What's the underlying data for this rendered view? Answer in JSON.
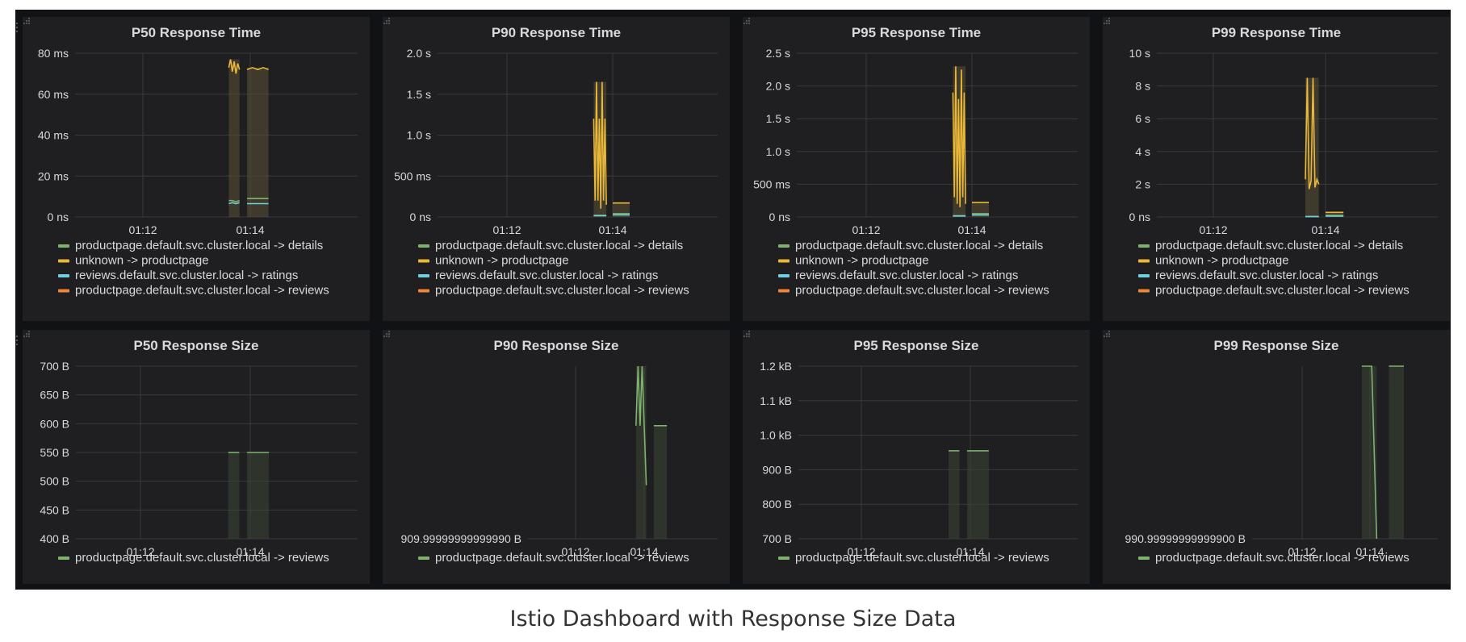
{
  "colors": {
    "details": "#7eb26d",
    "productpage": "#eab839",
    "ratings": "#6ed0e0",
    "reviews": "#ef843c",
    "panel_bg": "#1f1f21",
    "dashboard_bg": "#111215",
    "grid": "#3a3a3c",
    "text": "#d8d9da"
  },
  "caption": "Istio Dashboard with Response Size Data",
  "panels": [
    {
      "title": "P50 Response Time",
      "chart_data": {
        "type": "line",
        "x_ticks": [
          "01:12",
          "01:14"
        ],
        "y_ticks": [
          "80 ms",
          "60 ms",
          "40 ms",
          "20 ms",
          "0 ns"
        ],
        "ylim": [
          0,
          80
        ],
        "series": [
          {
            "name": "productpage.default.svc.cluster.local -> details",
            "color": "#7eb26d",
            "bursts": [
              [
                0.8,
                0.9,
                [
                  8,
                  8,
                  7.5,
                  8
                ]
              ],
              [
                0.97,
                1.17,
                [
                  9,
                  9,
                  9
                ]
              ]
            ]
          },
          {
            "name": "unknown -> productpage",
            "color": "#eab839",
            "bursts": [
              [
                0.8,
                0.9,
                [
                  73,
                  77,
                  71,
                  76,
                  70,
                  75,
                  72
                ]
              ],
              [
                0.97,
                1.17,
                [
                  72,
                  73,
                  72,
                  73,
                  72
                ]
              ]
            ]
          },
          {
            "name": "reviews.default.svc.cluster.local -> ratings",
            "color": "#6ed0e0",
            "bursts": [
              [
                0.8,
                0.9,
                [
                  6.5,
                  7,
                  6.5,
                  7
                ]
              ],
              [
                0.97,
                1.17,
                [
                  6.5,
                  6.5,
                  6.5
                ]
              ]
            ]
          },
          {
            "name": "productpage.default.svc.cluster.local -> reviews",
            "color": "#ef843c",
            "bursts": []
          }
        ]
      }
    },
    {
      "title": "P90 Response Time",
      "chart_data": {
        "type": "line",
        "x_ticks": [
          "01:12",
          "01:14"
        ],
        "y_ticks": [
          "2.0 s",
          "1.5 s",
          "1.0 s",
          "500 ms",
          "0 ns"
        ],
        "ylim": [
          0,
          2.0
        ],
        "series": [
          {
            "name": "productpage.default.svc.cluster.local -> details",
            "color": "#7eb26d",
            "bursts": [
              [
                0.82,
                0.94,
                [
                  0.02,
                  0.02,
                  0.02
                ]
              ],
              [
                1.0,
                1.16,
                [
                  0.04,
                  0.04
                ]
              ]
            ]
          },
          {
            "name": "unknown -> productpage",
            "color": "#eab839",
            "bursts": [
              [
                0.82,
                0.94,
                [
                  1.2,
                  0.2,
                  1.65,
                  0.2,
                  1.2,
                  0.1,
                  1.65,
                  0.2,
                  1.2,
                  0.15
                ]
              ],
              [
                1.0,
                1.16,
                [
                  0.17,
                  0.17
                ]
              ]
            ]
          },
          {
            "name": "reviews.default.svc.cluster.local -> ratings",
            "color": "#6ed0e0",
            "bursts": [
              [
                0.82,
                0.94,
                [
                  0.015,
                  0.015
                ]
              ],
              [
                1.0,
                1.16,
                [
                  0.025,
                  0.025
                ]
              ]
            ]
          },
          {
            "name": "productpage.default.svc.cluster.local -> reviews",
            "color": "#ef843c",
            "bursts": []
          }
        ]
      }
    },
    {
      "title": "P95 Response Time",
      "chart_data": {
        "type": "line",
        "x_ticks": [
          "01:12",
          "01:14"
        ],
        "y_ticks": [
          "2.5 s",
          "2.0 s",
          "1.5 s",
          "1.0 s",
          "500 ms",
          "0 ns"
        ],
        "ylim": [
          0,
          2.5
        ],
        "series": [
          {
            "name": "productpage.default.svc.cluster.local -> details",
            "color": "#7eb26d",
            "bursts": [
              [
                0.82,
                0.94,
                [
                  0.02,
                  0.02,
                  0.02
                ]
              ],
              [
                1.0,
                1.16,
                [
                  0.05,
                  0.05
                ]
              ]
            ]
          },
          {
            "name": "unknown -> productpage",
            "color": "#eab839",
            "bursts": [
              [
                0.82,
                0.94,
                [
                  1.9,
                  0.3,
                  2.3,
                  0.2,
                  1.8,
                  0.15,
                  2.25,
                  0.3,
                  1.9,
                  0.2
                ]
              ],
              [
                1.0,
                1.16,
                [
                  0.22,
                  0.22
                ]
              ]
            ]
          },
          {
            "name": "reviews.default.svc.cluster.local -> ratings",
            "color": "#6ed0e0",
            "bursts": [
              [
                0.82,
                0.94,
                [
                  0.015,
                  0.015
                ]
              ],
              [
                1.0,
                1.16,
                [
                  0.03,
                  0.03
                ]
              ]
            ]
          },
          {
            "name": "productpage.default.svc.cluster.local -> reviews",
            "color": "#ef843c",
            "bursts": []
          }
        ]
      }
    },
    {
      "title": "P99 Response Time",
      "chart_data": {
        "type": "line",
        "x_ticks": [
          "01:12",
          "01:14"
        ],
        "y_ticks": [
          "10 s",
          "8 s",
          "6 s",
          "4 s",
          "2 s",
          "0 ns"
        ],
        "ylim": [
          0,
          10
        ],
        "series": [
          {
            "name": "productpage.default.svc.cluster.local -> details",
            "color": "#7eb26d",
            "bursts": [
              [
                0.82,
                0.94,
                [
                  0.03,
                  0.03,
                  0.03
                ]
              ],
              [
                1.0,
                1.16,
                [
                  0.1,
                  0.1
                ]
              ]
            ]
          },
          {
            "name": "unknown -> productpage",
            "color": "#eab839",
            "bursts": [
              [
                0.82,
                0.94,
                [
                  2.3,
                  8.5,
                  1.7,
                  2.2,
                  8.5,
                  1.8,
                  2.3,
                  2.0
                ]
              ],
              [
                1.0,
                1.16,
                [
                  0.28,
                  0.28
                ]
              ]
            ]
          },
          {
            "name": "reviews.default.svc.cluster.local -> ratings",
            "color": "#6ed0e0",
            "bursts": [
              [
                0.82,
                0.94,
                [
                  0.02,
                  0.02
                ]
              ],
              [
                1.0,
                1.16,
                [
                  0.05,
                  0.05
                ]
              ]
            ]
          },
          {
            "name": "productpage.default.svc.cluster.local -> reviews",
            "color": "#ef843c",
            "bursts": []
          }
        ]
      }
    },
    {
      "title": "P50 Response Size",
      "chart_data": {
        "type": "line",
        "x_ticks": [
          "01:12",
          "01:14"
        ],
        "y_ticks": [
          "700 B",
          "650 B",
          "600 B",
          "550 B",
          "500 B",
          "450 B",
          "400 B"
        ],
        "ylim": [
          400,
          700
        ],
        "series": [
          {
            "name": "productpage.default.svc.cluster.local -> reviews",
            "color": "#7eb26d",
            "bursts": [
              [
                0.8,
                0.9,
                [
                  550,
                  550
                ]
              ],
              [
                0.97,
                1.17,
                [
                  550,
                  550
                ]
              ]
            ]
          }
        ]
      }
    },
    {
      "title": "P90 Response Size",
      "chart_data": {
        "type": "line",
        "x_ticks": [
          "01:12",
          "01:14"
        ],
        "y_ticks": [
          "909.99999999999990 B"
        ],
        "ylim": [
          910,
          1200
        ],
        "series": [
          {
            "name": "productpage.default.svc.cluster.local -> reviews",
            "color": "#7eb26d",
            "bursts": [
              [
                0.88,
                1.03,
                [
                  1100,
                  1200,
                  1100,
                  1200,
                  1100,
                  1000
                ]
              ],
              [
                1.14,
                1.33,
                [
                  1100,
                  1100
                ]
              ]
            ]
          }
        ]
      }
    },
    {
      "title": "P95 Response Size",
      "chart_data": {
        "type": "line",
        "x_ticks": [
          "01:12",
          "01:14"
        ],
        "y_ticks": [
          "1.2 kB",
          "1.1 kB",
          "1.0 kB",
          "900 B",
          "800 B",
          "700 B"
        ],
        "ylim": [
          700,
          1200
        ],
        "series": [
          {
            "name": "productpage.default.svc.cluster.local -> reviews",
            "color": "#7eb26d",
            "bursts": [
              [
                0.8,
                0.9,
                [
                  955,
                  955
                ]
              ],
              [
                0.97,
                1.17,
                [
                  955,
                  955
                ]
              ]
            ]
          }
        ]
      }
    },
    {
      "title": "P99 Response Size",
      "chart_data": {
        "type": "line",
        "x_ticks": [
          "01:12",
          "01:14"
        ],
        "y_ticks": [
          "990.99999999999900 B"
        ],
        "ylim": [
          991,
          1200
        ],
        "series": [
          {
            "name": "productpage.default.svc.cluster.local -> reviews",
            "color": "#7eb26d",
            "bursts": [
              [
                0.88,
                1.1,
                [
                  1200,
                  1200,
                  1200,
                  991
                ]
              ],
              [
                1.28,
                1.5,
                [
                  1200,
                  1200
                ]
              ]
            ]
          }
        ]
      }
    }
  ]
}
